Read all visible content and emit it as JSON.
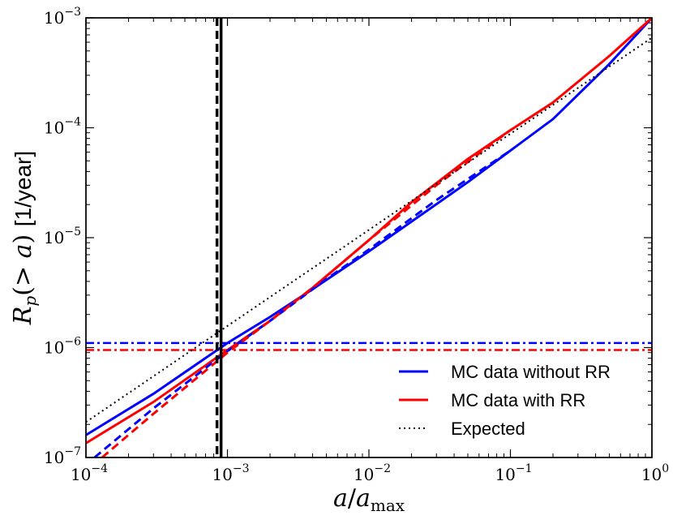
{
  "chart_data": {
    "type": "line",
    "xscale": "log",
    "yscale": "log",
    "xlim": [
      0.0001,
      1
    ],
    "ylim": [
      1e-07,
      0.001
    ],
    "xlabel": "a/a_max",
    "ylabel": "R_p(> a) [1/year]",
    "x_ticks": [
      {
        "value": 0.0001,
        "base": "10",
        "exp": "−4"
      },
      {
        "value": 0.001,
        "base": "10",
        "exp": "−3"
      },
      {
        "value": 0.01,
        "base": "10",
        "exp": "−2"
      },
      {
        "value": 0.1,
        "base": "10",
        "exp": "−1"
      },
      {
        "value": 1,
        "base": "10",
        "exp": "0"
      }
    ],
    "y_ticks": [
      {
        "value": 1e-07,
        "base": "10",
        "exp": "−7"
      },
      {
        "value": 1e-06,
        "base": "10",
        "exp": "−6"
      },
      {
        "value": 1e-05,
        "base": "10",
        "exp": "−5"
      },
      {
        "value": 0.0001,
        "base": "10",
        "exp": "−4"
      },
      {
        "value": 0.001,
        "base": "10",
        "exp": "−3"
      }
    ],
    "series": [
      {
        "name": "MC data without RR",
        "color": "#0000ff",
        "style": "solid",
        "x": [
          0.0001,
          0.0003,
          0.001,
          0.002,
          0.004,
          0.01,
          0.02,
          0.05,
          0.1,
          0.2,
          0.5,
          1
        ],
        "y": [
          1.6e-07,
          3.8e-07,
          1.1e-06,
          1.9e-06,
          3.4e-06,
          7.5e-06,
          1.4e-05,
          3.2e-05,
          6.2e-05,
          0.00012,
          0.00038,
          0.001
        ]
      },
      {
        "name": "MC data with RR",
        "color": "#ff0000",
        "style": "solid",
        "x": [
          0.0001,
          0.0003,
          0.001,
          0.002,
          0.004,
          0.01,
          0.02,
          0.05,
          0.1,
          0.2,
          0.5,
          1
        ],
        "y": [
          1.35e-07,
          3.2e-07,
          9.5e-07,
          1.75e-06,
          3.5e-06,
          9.5e-06,
          2.1e-05,
          5.2e-05,
          9.5e-05,
          0.00017,
          0.00045,
          0.001
        ]
      },
      {
        "name": "MC data without RR (dashed)",
        "color": "#0000ff",
        "style": "dashed",
        "x": [
          0.000115,
          0.0003,
          0.001,
          0.002,
          0.005,
          0.01,
          0.03,
          0.1
        ],
        "y": [
          1e-07,
          2.8e-07,
          9.3e-07,
          1.75e-06,
          4.2e-06,
          7.8e-06,
          2.2e-05,
          6.2e-05
        ]
      },
      {
        "name": "MC data with RR (dashed)",
        "color": "#ff0000",
        "style": "dashed",
        "x": [
          0.00013,
          0.0003,
          0.001,
          0.002,
          0.004,
          0.01,
          0.03,
          0.1
        ],
        "y": [
          1e-07,
          2.5e-07,
          9e-07,
          1.75e-06,
          3.5e-06,
          9.5e-06,
          3e-05,
          9.5e-05
        ]
      },
      {
        "name": "Expected",
        "color": "#000000",
        "style": "dotted",
        "x": [
          0.0001,
          1
        ],
        "y": [
          2.1e-07,
          0.00066
        ]
      }
    ],
    "hlines": [
      {
        "y": 1.1e-06,
        "color": "#0000ff",
        "style": "dashdot"
      },
      {
        "y": 9.5e-07,
        "color": "#ff0000",
        "style": "dashdot"
      }
    ],
    "vlines": [
      {
        "x": 0.000878,
        "color": "#000000",
        "style": "solid"
      },
      {
        "x": 0.000878,
        "color": "#000000",
        "style": "dashed"
      }
    ],
    "legend": {
      "position": "lower-right",
      "entries": [
        {
          "label": "MC data without RR",
          "color": "#0000ff",
          "style": "solid"
        },
        {
          "label": "MC data with RR",
          "color": "#ff0000",
          "style": "solid"
        },
        {
          "label": "Expected",
          "color": "#000000",
          "style": "dotted"
        }
      ]
    }
  }
}
